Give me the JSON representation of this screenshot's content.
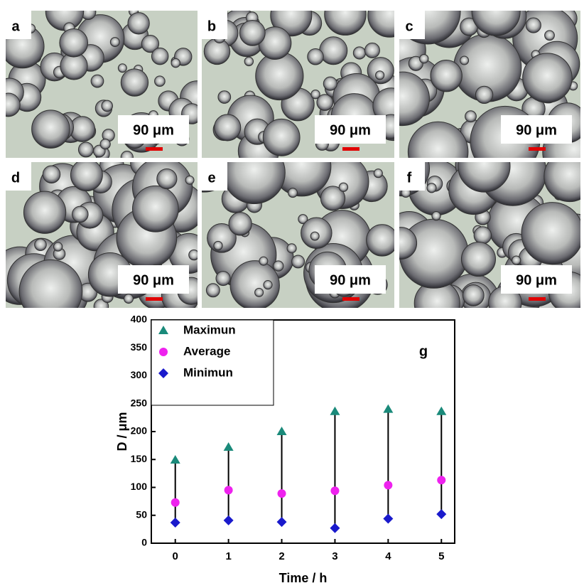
{
  "panels": [
    {
      "label": "a",
      "scale_label": "90 μm"
    },
    {
      "label": "b",
      "scale_label": "90 μm"
    },
    {
      "label": "c",
      "scale_label": "90 μm"
    },
    {
      "label": "d",
      "scale_label": "90 μm"
    },
    {
      "label": "e",
      "scale_label": "90 μm"
    },
    {
      "label": "f",
      "scale_label": "90 μm"
    }
  ],
  "chart_data": {
    "type": "scatter",
    "label": "g",
    "x_label": "Time / h",
    "y_label": "D / μm",
    "x": [
      0,
      1,
      2,
      3,
      4,
      5
    ],
    "series": [
      {
        "name": "Maximun",
        "color": "#1a8a7a",
        "marker": "triangle",
        "values": [
          149,
          172,
          200,
          236,
          240,
          236
        ]
      },
      {
        "name": "Average",
        "color": "#ee22ee",
        "marker": "circle",
        "values": [
          73,
          95,
          89,
          94,
          104,
          113
        ]
      },
      {
        "name": "Minimun",
        "color": "#1a1acc",
        "marker": "diamond",
        "values": [
          37,
          41,
          38,
          27,
          44,
          52
        ]
      }
    ],
    "range_lines": true,
    "xlim": [
      -0.45,
      5.25
    ],
    "xticks": [
      0,
      1,
      2,
      3,
      4,
      5
    ],
    "ylim": [
      0,
      400
    ],
    "yticks": [
      0,
      50,
      100,
      150,
      200,
      250,
      300,
      350,
      400
    ],
    "legend": "top-left"
  }
}
